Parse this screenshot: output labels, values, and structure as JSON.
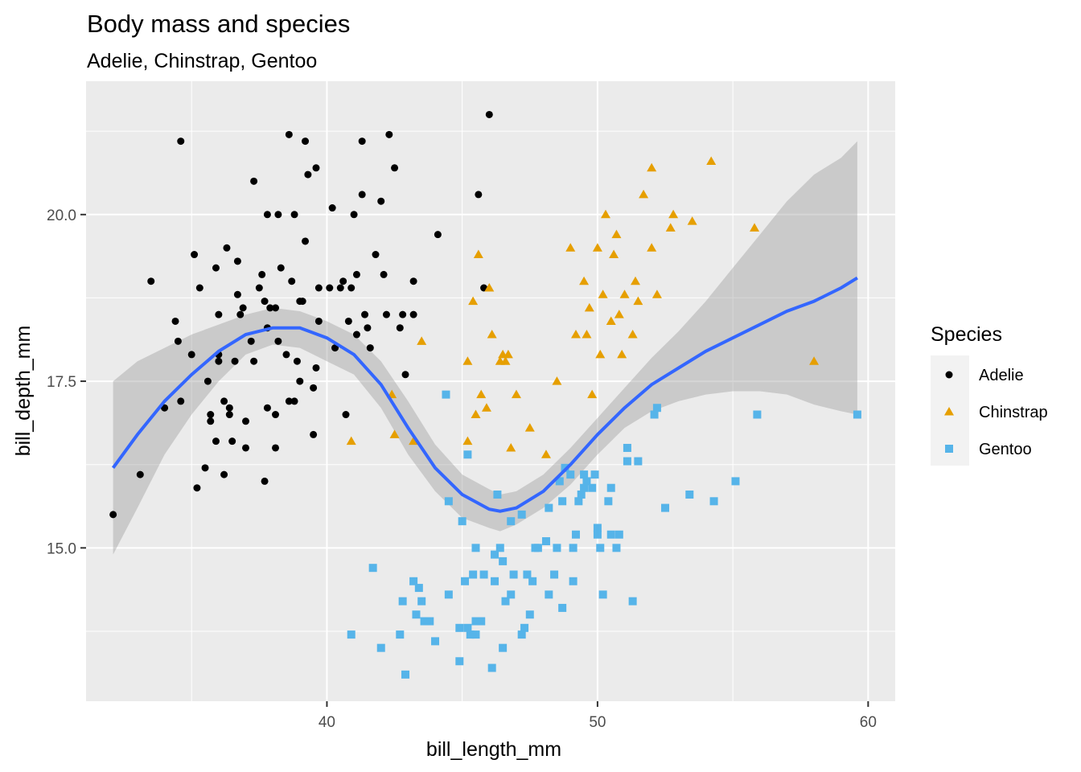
{
  "chart_data": {
    "type": "scatter",
    "title": "Body mass and species",
    "subtitle": "Adelie, Chinstrap, Gentoo",
    "xlabel": "bill_length_mm",
    "ylabel": "bill_depth_mm",
    "xlim": [
      31.1,
      61.0
    ],
    "ylim": [
      12.7,
      22.0
    ],
    "x_ticks": [
      40,
      50,
      60
    ],
    "x_tick_labels": [
      "40",
      "50",
      "60"
    ],
    "y_ticks": [
      15.0,
      17.5,
      20.0
    ],
    "y_tick_labels": [
      "15.0",
      "17.5",
      "20.0"
    ],
    "grid": true,
    "legend": {
      "title": "Species",
      "position": "right",
      "entries": [
        "Adelie",
        "Chinstrap",
        "Gentoo"
      ]
    },
    "series": [
      {
        "name": "Adelie",
        "color": "#000000",
        "marker": "circle",
        "points": [
          [
            32.1,
            15.5
          ],
          [
            33.1,
            16.1
          ],
          [
            33.5,
            19.0
          ],
          [
            34.0,
            17.1
          ],
          [
            34.4,
            18.4
          ],
          [
            34.5,
            18.1
          ],
          [
            34.6,
            21.1
          ],
          [
            34.6,
            17.2
          ],
          [
            35.0,
            17.9
          ],
          [
            35.1,
            19.4
          ],
          [
            35.2,
            15.9
          ],
          [
            35.3,
            18.9
          ],
          [
            35.5,
            16.2
          ],
          [
            35.6,
            17.5
          ],
          [
            35.7,
            17.0
          ],
          [
            35.7,
            16.9
          ],
          [
            35.9,
            16.6
          ],
          [
            35.9,
            19.2
          ],
          [
            36.0,
            17.8
          ],
          [
            36.0,
            18.5
          ],
          [
            36.0,
            17.9
          ],
          [
            36.2,
            16.1
          ],
          [
            36.2,
            17.2
          ],
          [
            36.3,
            19.5
          ],
          [
            36.4,
            17.0
          ],
          [
            36.4,
            17.1
          ],
          [
            36.5,
            16.6
          ],
          [
            36.6,
            17.8
          ],
          [
            36.7,
            18.8
          ],
          [
            36.7,
            19.3
          ],
          [
            36.8,
            18.5
          ],
          [
            36.9,
            18.6
          ],
          [
            37.0,
            16.9
          ],
          [
            37.0,
            16.5
          ],
          [
            37.2,
            18.1
          ],
          [
            37.3,
            17.8
          ],
          [
            37.3,
            20.5
          ],
          [
            37.5,
            18.9
          ],
          [
            37.6,
            19.1
          ],
          [
            37.7,
            18.7
          ],
          [
            37.7,
            16.0
          ],
          [
            37.8,
            18.3
          ],
          [
            37.8,
            17.1
          ],
          [
            37.8,
            20.0
          ],
          [
            37.9,
            18.6
          ],
          [
            38.1,
            18.6
          ],
          [
            38.1,
            16.5
          ],
          [
            38.1,
            17.0
          ],
          [
            38.2,
            20.0
          ],
          [
            38.2,
            18.1
          ],
          [
            38.3,
            19.2
          ],
          [
            38.5,
            17.9
          ],
          [
            38.6,
            21.2
          ],
          [
            38.6,
            17.2
          ],
          [
            38.7,
            19.0
          ],
          [
            38.8,
            17.2
          ],
          [
            38.8,
            20.0
          ],
          [
            38.9,
            17.8
          ],
          [
            39.0,
            17.5
          ],
          [
            39.0,
            18.7
          ],
          [
            39.1,
            18.7
          ],
          [
            39.2,
            21.1
          ],
          [
            39.2,
            19.6
          ],
          [
            39.3,
            20.6
          ],
          [
            39.5,
            17.4
          ],
          [
            39.5,
            16.7
          ],
          [
            39.6,
            17.7
          ],
          [
            39.6,
            20.7
          ],
          [
            39.7,
            18.4
          ],
          [
            39.7,
            18.9
          ],
          [
            40.1,
            18.9
          ],
          [
            40.2,
            20.1
          ],
          [
            40.3,
            18.0
          ],
          [
            40.5,
            18.9
          ],
          [
            40.6,
            19.0
          ],
          [
            40.7,
            17.0
          ],
          [
            40.8,
            18.4
          ],
          [
            40.9,
            18.9
          ],
          [
            41.0,
            20.0
          ],
          [
            41.1,
            18.2
          ],
          [
            41.1,
            19.1
          ],
          [
            41.3,
            21.1
          ],
          [
            41.3,
            20.3
          ],
          [
            41.4,
            18.5
          ],
          [
            41.5,
            18.3
          ],
          [
            41.6,
            18.0
          ],
          [
            41.8,
            19.4
          ],
          [
            42.0,
            20.2
          ],
          [
            42.1,
            19.1
          ],
          [
            42.2,
            18.5
          ],
          [
            42.3,
            21.2
          ],
          [
            42.5,
            20.7
          ],
          [
            42.7,
            18.3
          ],
          [
            42.8,
            18.5
          ],
          [
            42.9,
            17.6
          ],
          [
            43.2,
            19.0
          ],
          [
            43.2,
            18.5
          ],
          [
            44.1,
            19.7
          ],
          [
            45.6,
            20.3
          ],
          [
            45.8,
            18.9
          ],
          [
            46.0,
            21.5
          ]
        ]
      },
      {
        "name": "Chinstrap",
        "color": "#E69F00",
        "marker": "triangle",
        "points": [
          [
            40.9,
            16.6
          ],
          [
            42.4,
            17.3
          ],
          [
            42.5,
            16.7
          ],
          [
            43.2,
            16.6
          ],
          [
            43.5,
            18.1
          ],
          [
            45.2,
            16.6
          ],
          [
            45.2,
            17.8
          ],
          [
            45.4,
            18.7
          ],
          [
            45.5,
            17.0
          ],
          [
            45.6,
            19.4
          ],
          [
            45.7,
            17.3
          ],
          [
            45.9,
            17.1
          ],
          [
            46.0,
            18.9
          ],
          [
            46.1,
            18.2
          ],
          [
            46.4,
            17.8
          ],
          [
            46.5,
            17.9
          ],
          [
            46.6,
            17.8
          ],
          [
            46.7,
            17.9
          ],
          [
            46.8,
            16.5
          ],
          [
            47.0,
            17.3
          ],
          [
            47.5,
            16.8
          ],
          [
            48.1,
            16.4
          ],
          [
            48.5,
            17.5
          ],
          [
            49.0,
            19.5
          ],
          [
            49.2,
            18.2
          ],
          [
            49.5,
            19.0
          ],
          [
            49.6,
            18.2
          ],
          [
            49.7,
            18.6
          ],
          [
            49.8,
            17.3
          ],
          [
            50.0,
            19.5
          ],
          [
            50.1,
            17.9
          ],
          [
            50.2,
            18.8
          ],
          [
            50.3,
            20.0
          ],
          [
            50.5,
            18.4
          ],
          [
            50.6,
            19.4
          ],
          [
            50.7,
            19.7
          ],
          [
            50.8,
            18.5
          ],
          [
            50.9,
            17.9
          ],
          [
            51.0,
            18.8
          ],
          [
            51.3,
            18.2
          ],
          [
            51.4,
            19.0
          ],
          [
            51.5,
            18.7
          ],
          [
            51.7,
            20.3
          ],
          [
            52.0,
            19.5
          ],
          [
            52.0,
            20.7
          ],
          [
            52.2,
            18.8
          ],
          [
            52.7,
            19.8
          ],
          [
            52.8,
            20.0
          ],
          [
            53.5,
            19.9
          ],
          [
            54.2,
            20.8
          ],
          [
            55.8,
            19.8
          ],
          [
            58.0,
            17.8
          ]
        ]
      },
      {
        "name": "Gentoo",
        "color": "#56B4E9",
        "marker": "square",
        "points": [
          [
            40.9,
            13.7
          ],
          [
            41.7,
            14.7
          ],
          [
            42.0,
            13.5
          ],
          [
            42.7,
            13.7
          ],
          [
            42.8,
            14.2
          ],
          [
            42.9,
            13.1
          ],
          [
            43.2,
            14.5
          ],
          [
            43.3,
            14.0
          ],
          [
            43.4,
            14.4
          ],
          [
            43.5,
            14.2
          ],
          [
            43.6,
            13.9
          ],
          [
            43.8,
            13.9
          ],
          [
            44.0,
            13.6
          ],
          [
            44.4,
            17.3
          ],
          [
            44.5,
            15.7
          ],
          [
            44.5,
            14.3
          ],
          [
            44.9,
            13.8
          ],
          [
            44.9,
            13.3
          ],
          [
            45.0,
            15.4
          ],
          [
            45.1,
            14.5
          ],
          [
            45.2,
            16.4
          ],
          [
            45.2,
            13.8
          ],
          [
            45.3,
            13.7
          ],
          [
            45.4,
            14.6
          ],
          [
            45.5,
            15.0
          ],
          [
            45.5,
            13.7
          ],
          [
            45.5,
            13.9
          ],
          [
            45.7,
            13.9
          ],
          [
            45.8,
            14.6
          ],
          [
            46.1,
            13.2
          ],
          [
            46.2,
            14.5
          ],
          [
            46.2,
            14.9
          ],
          [
            46.3,
            15.8
          ],
          [
            46.4,
            15.0
          ],
          [
            46.5,
            13.5
          ],
          [
            46.5,
            14.8
          ],
          [
            46.6,
            14.2
          ],
          [
            46.8,
            15.4
          ],
          [
            46.8,
            14.3
          ],
          [
            46.9,
            14.6
          ],
          [
            47.2,
            15.5
          ],
          [
            47.2,
            13.7
          ],
          [
            47.3,
            13.8
          ],
          [
            47.4,
            14.6
          ],
          [
            47.5,
            14.0
          ],
          [
            47.6,
            14.5
          ],
          [
            47.7,
            15.0
          ],
          [
            47.8,
            15.0
          ],
          [
            48.1,
            15.1
          ],
          [
            48.2,
            14.3
          ],
          [
            48.2,
            15.6
          ],
          [
            48.4,
            14.6
          ],
          [
            48.5,
            15.0
          ],
          [
            48.6,
            16.0
          ],
          [
            48.7,
            14.1
          ],
          [
            48.7,
            15.7
          ],
          [
            48.8,
            16.2
          ],
          [
            49.0,
            16.1
          ],
          [
            49.1,
            14.5
          ],
          [
            49.1,
            15.0
          ],
          [
            49.2,
            15.2
          ],
          [
            49.3,
            15.7
          ],
          [
            49.4,
            15.8
          ],
          [
            49.5,
            15.9
          ],
          [
            49.5,
            16.1
          ],
          [
            49.6,
            16.0
          ],
          [
            49.8,
            15.9
          ],
          [
            49.9,
            16.1
          ],
          [
            50.0,
            15.2
          ],
          [
            50.0,
            15.3
          ],
          [
            50.1,
            15.0
          ],
          [
            50.2,
            14.3
          ],
          [
            50.4,
            15.7
          ],
          [
            50.5,
            15.2
          ],
          [
            50.5,
            15.9
          ],
          [
            50.7,
            15.0
          ],
          [
            50.8,
            15.2
          ],
          [
            51.1,
            16.3
          ],
          [
            51.1,
            16.5
          ],
          [
            51.3,
            14.2
          ],
          [
            51.5,
            16.3
          ],
          [
            52.1,
            17.0
          ],
          [
            52.2,
            17.1
          ],
          [
            52.5,
            15.6
          ],
          [
            53.4,
            15.8
          ],
          [
            54.3,
            15.7
          ],
          [
            55.1,
            16.0
          ],
          [
            55.9,
            17.0
          ],
          [
            59.6,
            17.0
          ]
        ]
      }
    ],
    "smooth": {
      "color": "#3366FF",
      "band_color": "#999999",
      "points": [
        [
          32.1,
          16.2,
          14.9,
          17.5
        ],
        [
          33.0,
          16.7,
          15.6,
          17.8
        ],
        [
          34.0,
          17.2,
          16.4,
          18.0
        ],
        [
          35.0,
          17.6,
          17.0,
          18.2
        ],
        [
          36.0,
          17.95,
          17.5,
          18.35
        ],
        [
          37.0,
          18.2,
          17.9,
          18.5
        ],
        [
          38.0,
          18.3,
          18.05,
          18.6
        ],
        [
          39.0,
          18.3,
          18.0,
          18.55
        ],
        [
          40.0,
          18.15,
          17.8,
          18.4
        ],
        [
          41.0,
          17.9,
          17.6,
          18.2
        ],
        [
          42.0,
          17.45,
          17.1,
          17.8
        ],
        [
          43.0,
          16.8,
          16.4,
          17.2
        ],
        [
          44.0,
          16.2,
          15.85,
          16.55
        ],
        [
          45.0,
          15.8,
          15.45,
          16.1
        ],
        [
          46.0,
          15.58,
          15.3,
          15.88
        ],
        [
          46.4,
          15.55,
          15.25,
          15.8
        ],
        [
          47.0,
          15.6,
          15.35,
          15.85
        ],
        [
          48.0,
          15.85,
          15.6,
          16.1
        ],
        [
          49.0,
          16.25,
          15.95,
          16.5
        ],
        [
          50.0,
          16.7,
          16.4,
          16.95
        ],
        [
          51.0,
          17.1,
          16.8,
          17.4
        ],
        [
          52.0,
          17.45,
          17.05,
          17.85
        ],
        [
          53.0,
          17.7,
          17.2,
          18.25
        ],
        [
          54.0,
          17.95,
          17.3,
          18.7
        ],
        [
          55.0,
          18.15,
          17.35,
          19.2
        ],
        [
          56.0,
          18.35,
          17.35,
          19.7
        ],
        [
          57.0,
          18.55,
          17.3,
          20.2
        ],
        [
          58.0,
          18.7,
          17.15,
          20.6
        ],
        [
          59.0,
          18.9,
          17.05,
          20.85
        ],
        [
          59.6,
          19.05,
          17.0,
          21.1
        ]
      ]
    }
  }
}
